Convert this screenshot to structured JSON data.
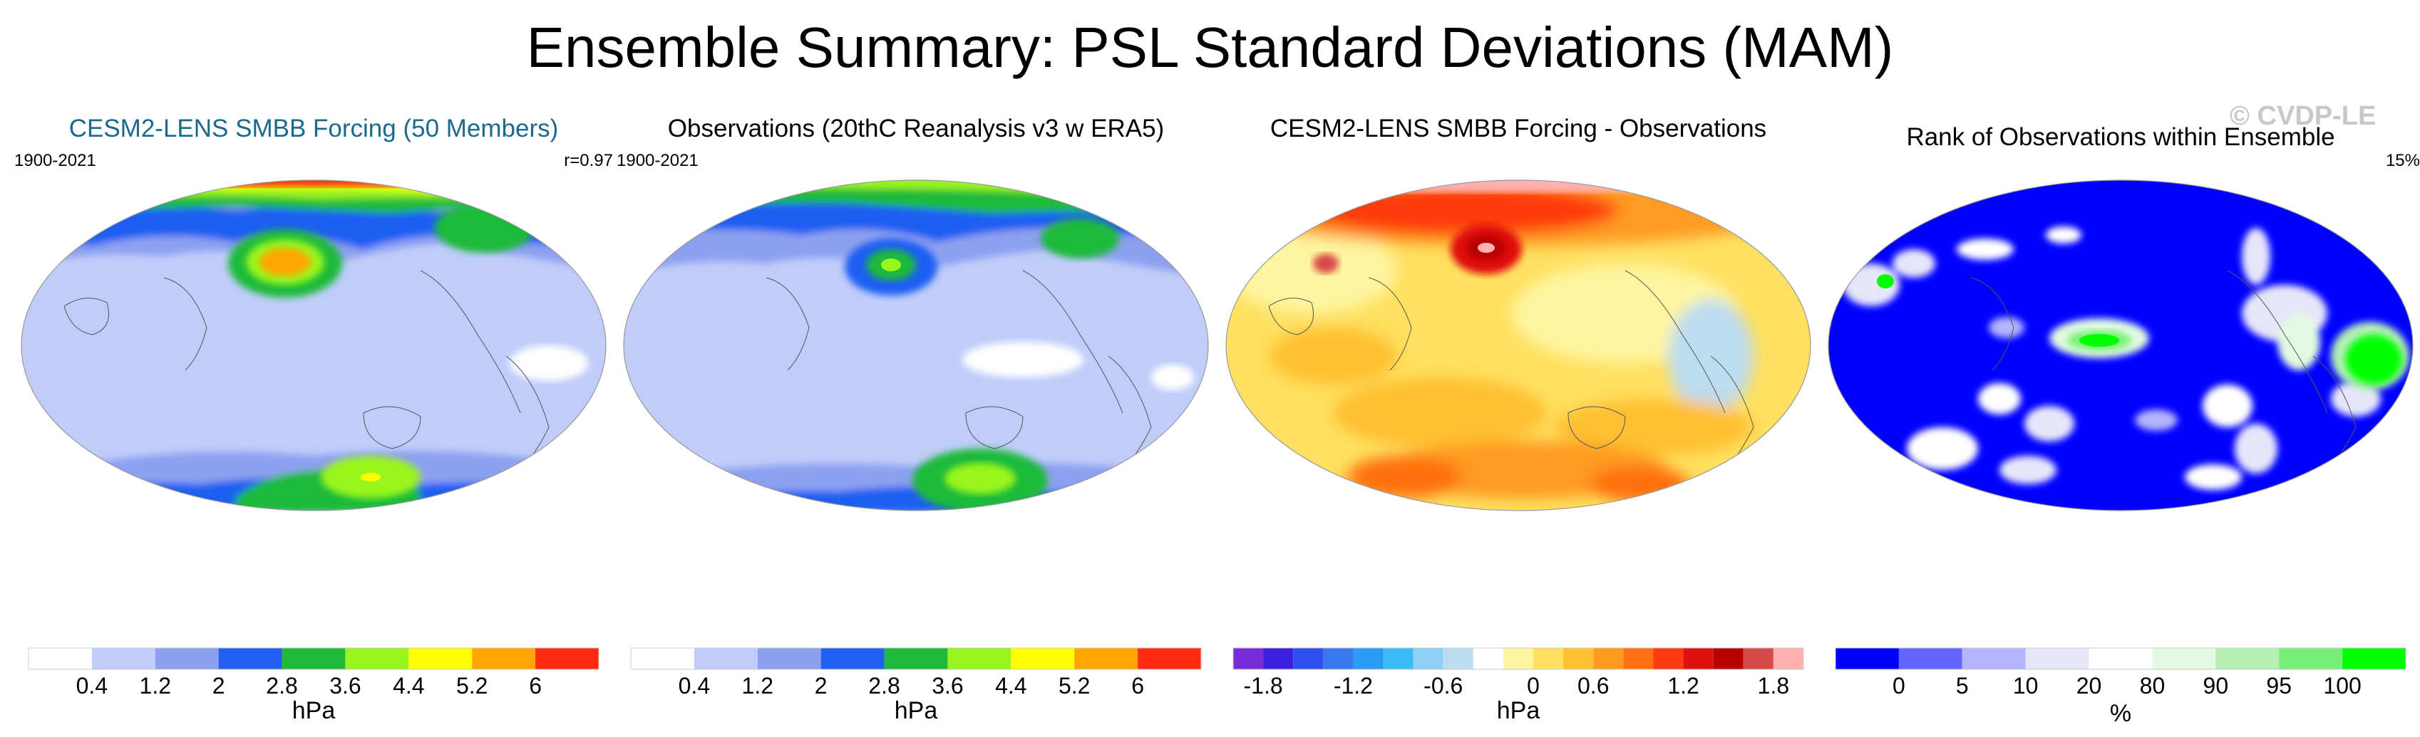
{
  "title": "Ensemble Summary: PSL Standard Deviations (MAM)",
  "watermark": "© CVDP-LE",
  "panels": [
    {
      "title": "CESM2-LENS SMBB Forcing (50 Members)",
      "title_color": "#1a6a8a",
      "left_label": "1900-2021",
      "right_label": "r=0.97",
      "unit": "hPa",
      "colors": [
        "#ffffff",
        "#c0cdfa",
        "#8da0f0",
        "#1f5ff2",
        "#1fba3a",
        "#9af51e",
        "#ffff00",
        "#ffa500",
        "#ff2a10"
      ],
      "ticks": [
        "0.4",
        "1.2",
        "2",
        "2.8",
        "3.6",
        "4.4",
        "5.2",
        "6"
      ]
    },
    {
      "title": "Observations (20thC Reanalysis v3 w ERA5)",
      "title_color": "#000000",
      "left_label": "1900-2021",
      "right_label": "",
      "unit": "hPa",
      "colors": [
        "#ffffff",
        "#c0cdfa",
        "#8da0f0",
        "#1f5ff2",
        "#1fba3a",
        "#9af51e",
        "#ffff00",
        "#ffa500",
        "#ff2a10"
      ],
      "ticks": [
        "0.4",
        "1.2",
        "2",
        "2.8",
        "3.6",
        "4.4",
        "5.2",
        "6"
      ]
    },
    {
      "title": "CESM2-LENS SMBB Forcing - Observations",
      "title_color": "#000000",
      "left_label": "",
      "right_label": "",
      "unit": "hPa",
      "colors": [
        "#7a2bd9",
        "#3a1fe0",
        "#2d4ff0",
        "#3a78f0",
        "#2a9af5",
        "#3cbcf5",
        "#8ed0f5",
        "#bcdcf0",
        "#ffffff",
        "#fff5a0",
        "#ffe060",
        "#ffc030",
        "#ff9a20",
        "#ff7010",
        "#ff3a10",
        "#e01010",
        "#b80000",
        "#d84a4a",
        "#ffb0b0"
      ],
      "ticks": [
        "-1.8",
        "-1.2",
        "-0.6",
        "0",
        "0.6",
        "1.2",
        "1.8"
      ]
    },
    {
      "title": "Rank of Observations within Ensemble",
      "title_color": "#000000",
      "left_label": "",
      "right_label": "15%",
      "unit": "%",
      "colors": [
        "#0000ff",
        "#6464ff",
        "#b4b4ff",
        "#e6e6fa",
        "#ffffff",
        "#e1fae1",
        "#b4f0b4",
        "#78f078",
        "#00ff00"
      ],
      "ticks": [
        "0",
        "5",
        "10",
        "20",
        "80",
        "90",
        "95",
        "100"
      ]
    }
  ]
}
